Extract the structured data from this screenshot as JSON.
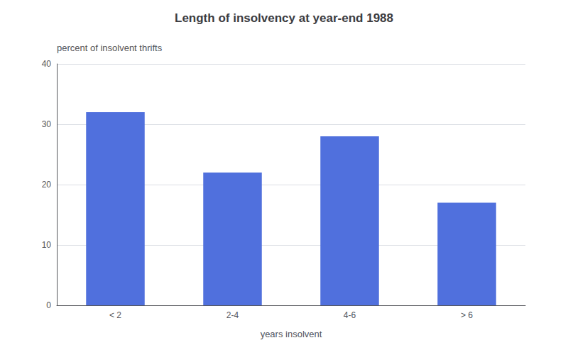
{
  "chart_data": {
    "type": "bar",
    "title": "Length of insolvency at year-end 1988",
    "categories": [
      "< 2",
      "2-4",
      "4-6",
      "> 6"
    ],
    "values": [
      32,
      22,
      28,
      17
    ],
    "xlabel": "years insolvent",
    "ylabel": "percent of insolvent thrifts",
    "ylim": [
      0,
      40
    ],
    "yticks": [
      0,
      10,
      20,
      30,
      40
    ],
    "grid": true
  }
}
